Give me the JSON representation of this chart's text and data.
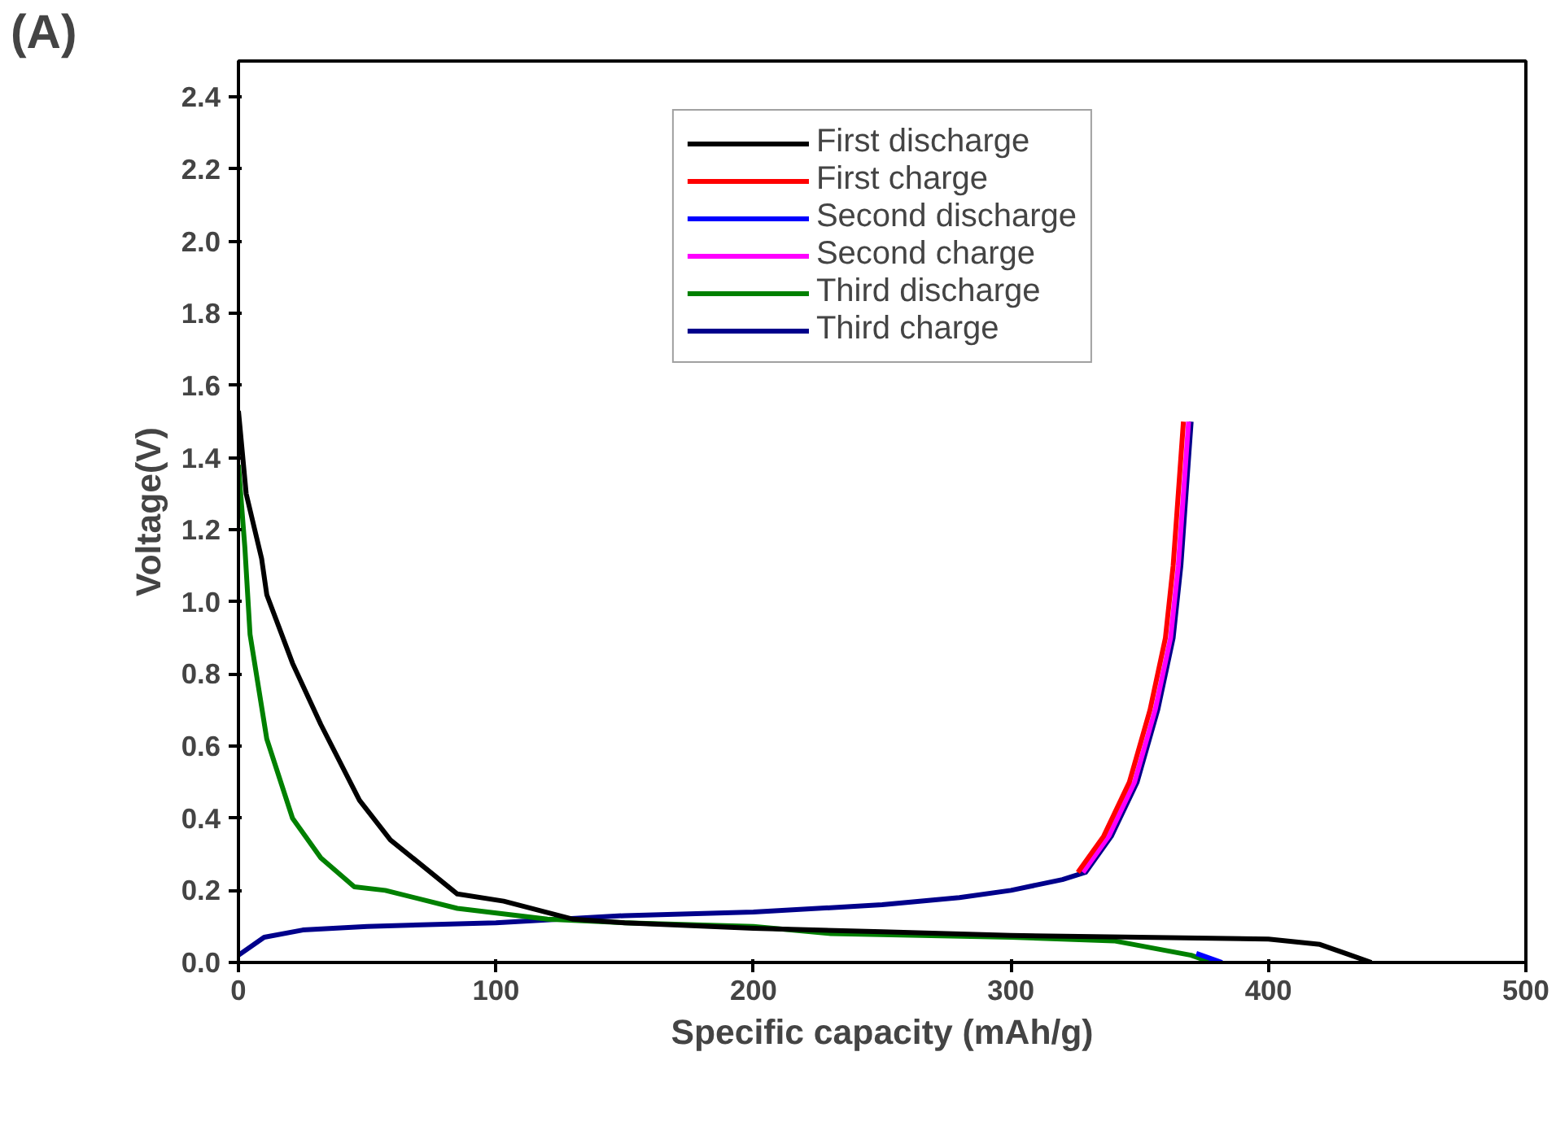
{
  "chart_data": {
    "type": "line",
    "title": "(A)",
    "xlabel": "Specific capacity (mAh/g)",
    "ylabel": "Voltage(V)",
    "xlim": [
      0,
      500
    ],
    "ylim": [
      0,
      2.5
    ],
    "xticks": [
      0,
      100,
      200,
      300,
      400,
      500
    ],
    "yticks": [
      {
        "value": 0,
        "label": "0.0"
      },
      0.2,
      0.4,
      0.6,
      0.8,
      {
        "value": 1,
        "label": "1.0"
      },
      1.2,
      1.4,
      1.6,
      1.8,
      {
        "value": 2,
        "label": "2.0"
      },
      2.2,
      2.4
    ],
    "grid": false,
    "legend": "top",
    "marker": "none",
    "line_style": "solid",
    "series": [
      {
        "name": "First discharge",
        "color": "#000000",
        "x": [
          0,
          3,
          9,
          11,
          21,
          32,
          47,
          59,
          85,
          103,
          130,
          150,
          200,
          250,
          300,
          350,
          400,
          420,
          430,
          440
        ],
        "values": [
          1.53,
          1.3,
          1.12,
          1.02,
          0.83,
          0.66,
          0.45,
          0.34,
          0.19,
          0.17,
          0.12,
          0.11,
          0.095,
          0.085,
          0.075,
          0.07,
          0.065,
          0.05,
          0.025,
          0
        ]
      },
      {
        "name": "First charge",
        "color": "#ff0000",
        "x": [
          326,
          336,
          346,
          354,
          360,
          363,
          365,
          367
        ],
        "values": [
          0.25,
          0.35,
          0.5,
          0.7,
          0.9,
          1.1,
          1.3,
          1.5
        ]
      },
      {
        "name": "Second discharge",
        "color": "#0000ff",
        "x": [
          372,
          382
        ],
        "values": [
          0.025,
          0
        ]
      },
      {
        "name": "Second charge",
        "color": "#ff00ff",
        "x": [
          328,
          338,
          348,
          356,
          362,
          365,
          367,
          369
        ],
        "values": [
          0.25,
          0.35,
          0.5,
          0.7,
          0.9,
          1.1,
          1.3,
          1.5
        ]
      },
      {
        "name": "Third discharge",
        "color": "#008000",
        "x": [
          0,
          2.5,
          4.5,
          11,
          21,
          32,
          45,
          57,
          85,
          120,
          150,
          200,
          230,
          300,
          340,
          370,
          378
        ],
        "values": [
          1.38,
          1.15,
          0.91,
          0.62,
          0.4,
          0.29,
          0.21,
          0.2,
          0.15,
          0.12,
          0.11,
          0.1,
          0.08,
          0.07,
          0.06,
          0.02,
          0
        ]
      },
      {
        "name": "Third charge",
        "color": "#00008b",
        "x": [
          0,
          10,
          25,
          50,
          100,
          150,
          200,
          250,
          280,
          300,
          320,
          329,
          339,
          349,
          357,
          363,
          366,
          368,
          370
        ],
        "values": [
          0.02,
          0.07,
          0.09,
          0.1,
          0.11,
          0.13,
          0.14,
          0.16,
          0.18,
          0.2,
          0.23,
          0.25,
          0.35,
          0.5,
          0.7,
          0.9,
          1.1,
          1.3,
          1.5
        ]
      }
    ]
  }
}
